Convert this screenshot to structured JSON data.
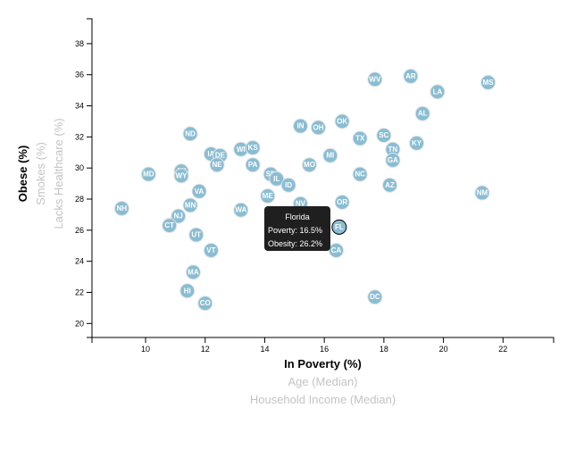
{
  "chart_data": {
    "type": "scatter",
    "x_axis": {
      "ticks": [
        10,
        12,
        14,
        16,
        18,
        20,
        22
      ],
      "range": [
        8.2,
        23.7
      ],
      "labels": [
        {
          "key": "poverty",
          "text": "In Poverty (%)",
          "active": true
        },
        {
          "key": "age",
          "text": "Age (Median)",
          "active": false
        },
        {
          "key": "income",
          "text": "Household Income (Median)",
          "active": false
        }
      ]
    },
    "y_axis": {
      "ticks": [
        20,
        22,
        24,
        26,
        28,
        30,
        32,
        34,
        36,
        38
      ],
      "range": [
        19.1,
        39.6
      ],
      "labels": [
        {
          "key": "obesity",
          "text": "Obese (%)",
          "active": true
        },
        {
          "key": "smokes",
          "text": "Smokes (%)",
          "active": false
        },
        {
          "key": "healthcare",
          "text": "Lacks Healthcare (%)",
          "active": false
        }
      ]
    },
    "points": [
      {
        "abbr": "WV",
        "x": 17.7,
        "y": 35.7
      },
      {
        "abbr": "AR",
        "x": 18.9,
        "y": 35.9
      },
      {
        "abbr": "MS",
        "x": 21.5,
        "y": 35.5
      },
      {
        "abbr": "LA",
        "x": 19.8,
        "y": 34.9
      },
      {
        "abbr": "AL",
        "x": 19.3,
        "y": 33.5
      },
      {
        "abbr": "OK",
        "x": 16.6,
        "y": 33.0
      },
      {
        "abbr": "IN",
        "x": 15.2,
        "y": 32.7
      },
      {
        "abbr": "OH",
        "x": 15.8,
        "y": 32.6
      },
      {
        "abbr": "SC",
        "x": 18.0,
        "y": 32.1
      },
      {
        "abbr": "ND",
        "x": 11.5,
        "y": 32.2
      },
      {
        "abbr": "TX",
        "x": 17.2,
        "y": 31.9
      },
      {
        "abbr": "KY",
        "x": 19.1,
        "y": 31.6
      },
      {
        "abbr": "TN",
        "x": 18.3,
        "y": 31.2
      },
      {
        "abbr": "WI",
        "x": 13.2,
        "y": 31.2
      },
      {
        "abbr": "KS",
        "x": 13.6,
        "y": 31.3
      },
      {
        "abbr": "IA",
        "x": 12.2,
        "y": 30.9
      },
      {
        "abbr": "DE",
        "x": 12.5,
        "y": 30.8
      },
      {
        "abbr": "MI",
        "x": 16.2,
        "y": 30.8
      },
      {
        "abbr": "GA",
        "x": 18.3,
        "y": 30.5
      },
      {
        "abbr": "NE",
        "x": 12.4,
        "y": 30.2
      },
      {
        "abbr": "PA",
        "x": 13.6,
        "y": 30.2
      },
      {
        "abbr": "MO",
        "x": 15.5,
        "y": 30.2
      },
      {
        "abbr": "AK",
        "x": 11.2,
        "y": 29.8
      },
      {
        "abbr": "MD",
        "x": 10.1,
        "y": 29.6
      },
      {
        "abbr": "WY",
        "x": 11.2,
        "y": 29.5
      },
      {
        "abbr": "SD",
        "x": 14.2,
        "y": 29.6
      },
      {
        "abbr": "NC",
        "x": 17.2,
        "y": 29.6
      },
      {
        "abbr": "IL",
        "x": 14.4,
        "y": 29.3
      },
      {
        "abbr": "ID",
        "x": 14.8,
        "y": 28.9
      },
      {
        "abbr": "AZ",
        "x": 18.2,
        "y": 28.9
      },
      {
        "abbr": "VA",
        "x": 11.8,
        "y": 28.5
      },
      {
        "abbr": "ME",
        "x": 14.1,
        "y": 28.2
      },
      {
        "abbr": "NM",
        "x": 21.3,
        "y": 28.4
      },
      {
        "abbr": "MN",
        "x": 11.5,
        "y": 27.6
      },
      {
        "abbr": "OR",
        "x": 16.6,
        "y": 27.8
      },
      {
        "abbr": "NV",
        "x": 15.2,
        "y": 27.7
      },
      {
        "abbr": "NH",
        "x": 9.2,
        "y": 27.4
      },
      {
        "abbr": "WA",
        "x": 13.2,
        "y": 27.3
      },
      {
        "abbr": "NJ",
        "x": 11.1,
        "y": 26.9
      },
      {
        "abbr": "CT",
        "x": 10.8,
        "y": 26.3
      },
      {
        "abbr": "FL",
        "x": 16.5,
        "y": 26.2
      },
      {
        "abbr": "UT",
        "x": 11.7,
        "y": 25.7
      },
      {
        "abbr": "CA",
        "x": 16.4,
        "y": 24.7
      },
      {
        "abbr": "VT",
        "x": 12.2,
        "y": 24.7
      },
      {
        "abbr": "MA",
        "x": 11.6,
        "y": 23.3
      },
      {
        "abbr": "HI",
        "x": 11.4,
        "y": 22.1
      },
      {
        "abbr": "DC",
        "x": 17.7,
        "y": 21.7
      },
      {
        "abbr": "CO",
        "x": 12.0,
        "y": 21.3
      }
    ],
    "highlight": "FL"
  },
  "tooltip": {
    "state": "Florida",
    "poverty_line": "Poverty: 16.5%",
    "obesity_line": "Obesity: 26.2%"
  },
  "colors": {
    "marker": "#89bdd3",
    "inactive_label": "#c4c4c4",
    "tooltip_bg": "#1f1f1f"
  }
}
